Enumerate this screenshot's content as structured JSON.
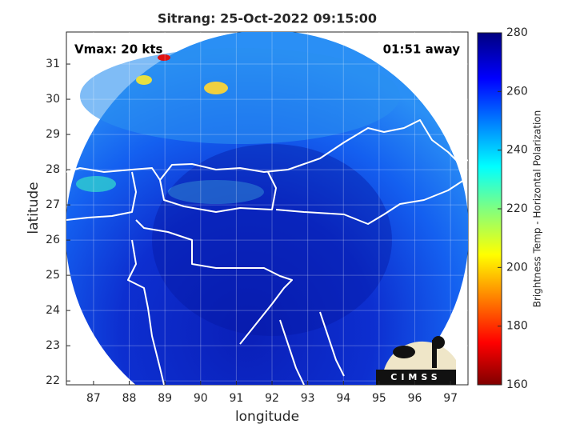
{
  "title": "Sitrang: 25-Oct-2022 09:15:00",
  "annotations": {
    "vmax": "Vmax: 20 kts",
    "away": "01:51 away"
  },
  "map": {
    "xlabel": "longitude",
    "ylabel": "latitude",
    "xlim": [
      86.24,
      97.49
    ],
    "ylim": [
      21.89,
      31.91
    ],
    "xticks": [
      87,
      88,
      89,
      90,
      91,
      92,
      93,
      94,
      95,
      96,
      97
    ],
    "yticks": [
      22,
      23,
      24,
      25,
      26,
      27,
      28,
      29,
      30,
      31
    ],
    "grid": true
  },
  "colorbar": {
    "label": "Brightness Temp - Horizontal Polarization",
    "lim": [
      160,
      280
    ],
    "ticks": [
      160,
      180,
      200,
      220,
      240,
      260,
      280
    ]
  },
  "logo": "CIMSS"
}
